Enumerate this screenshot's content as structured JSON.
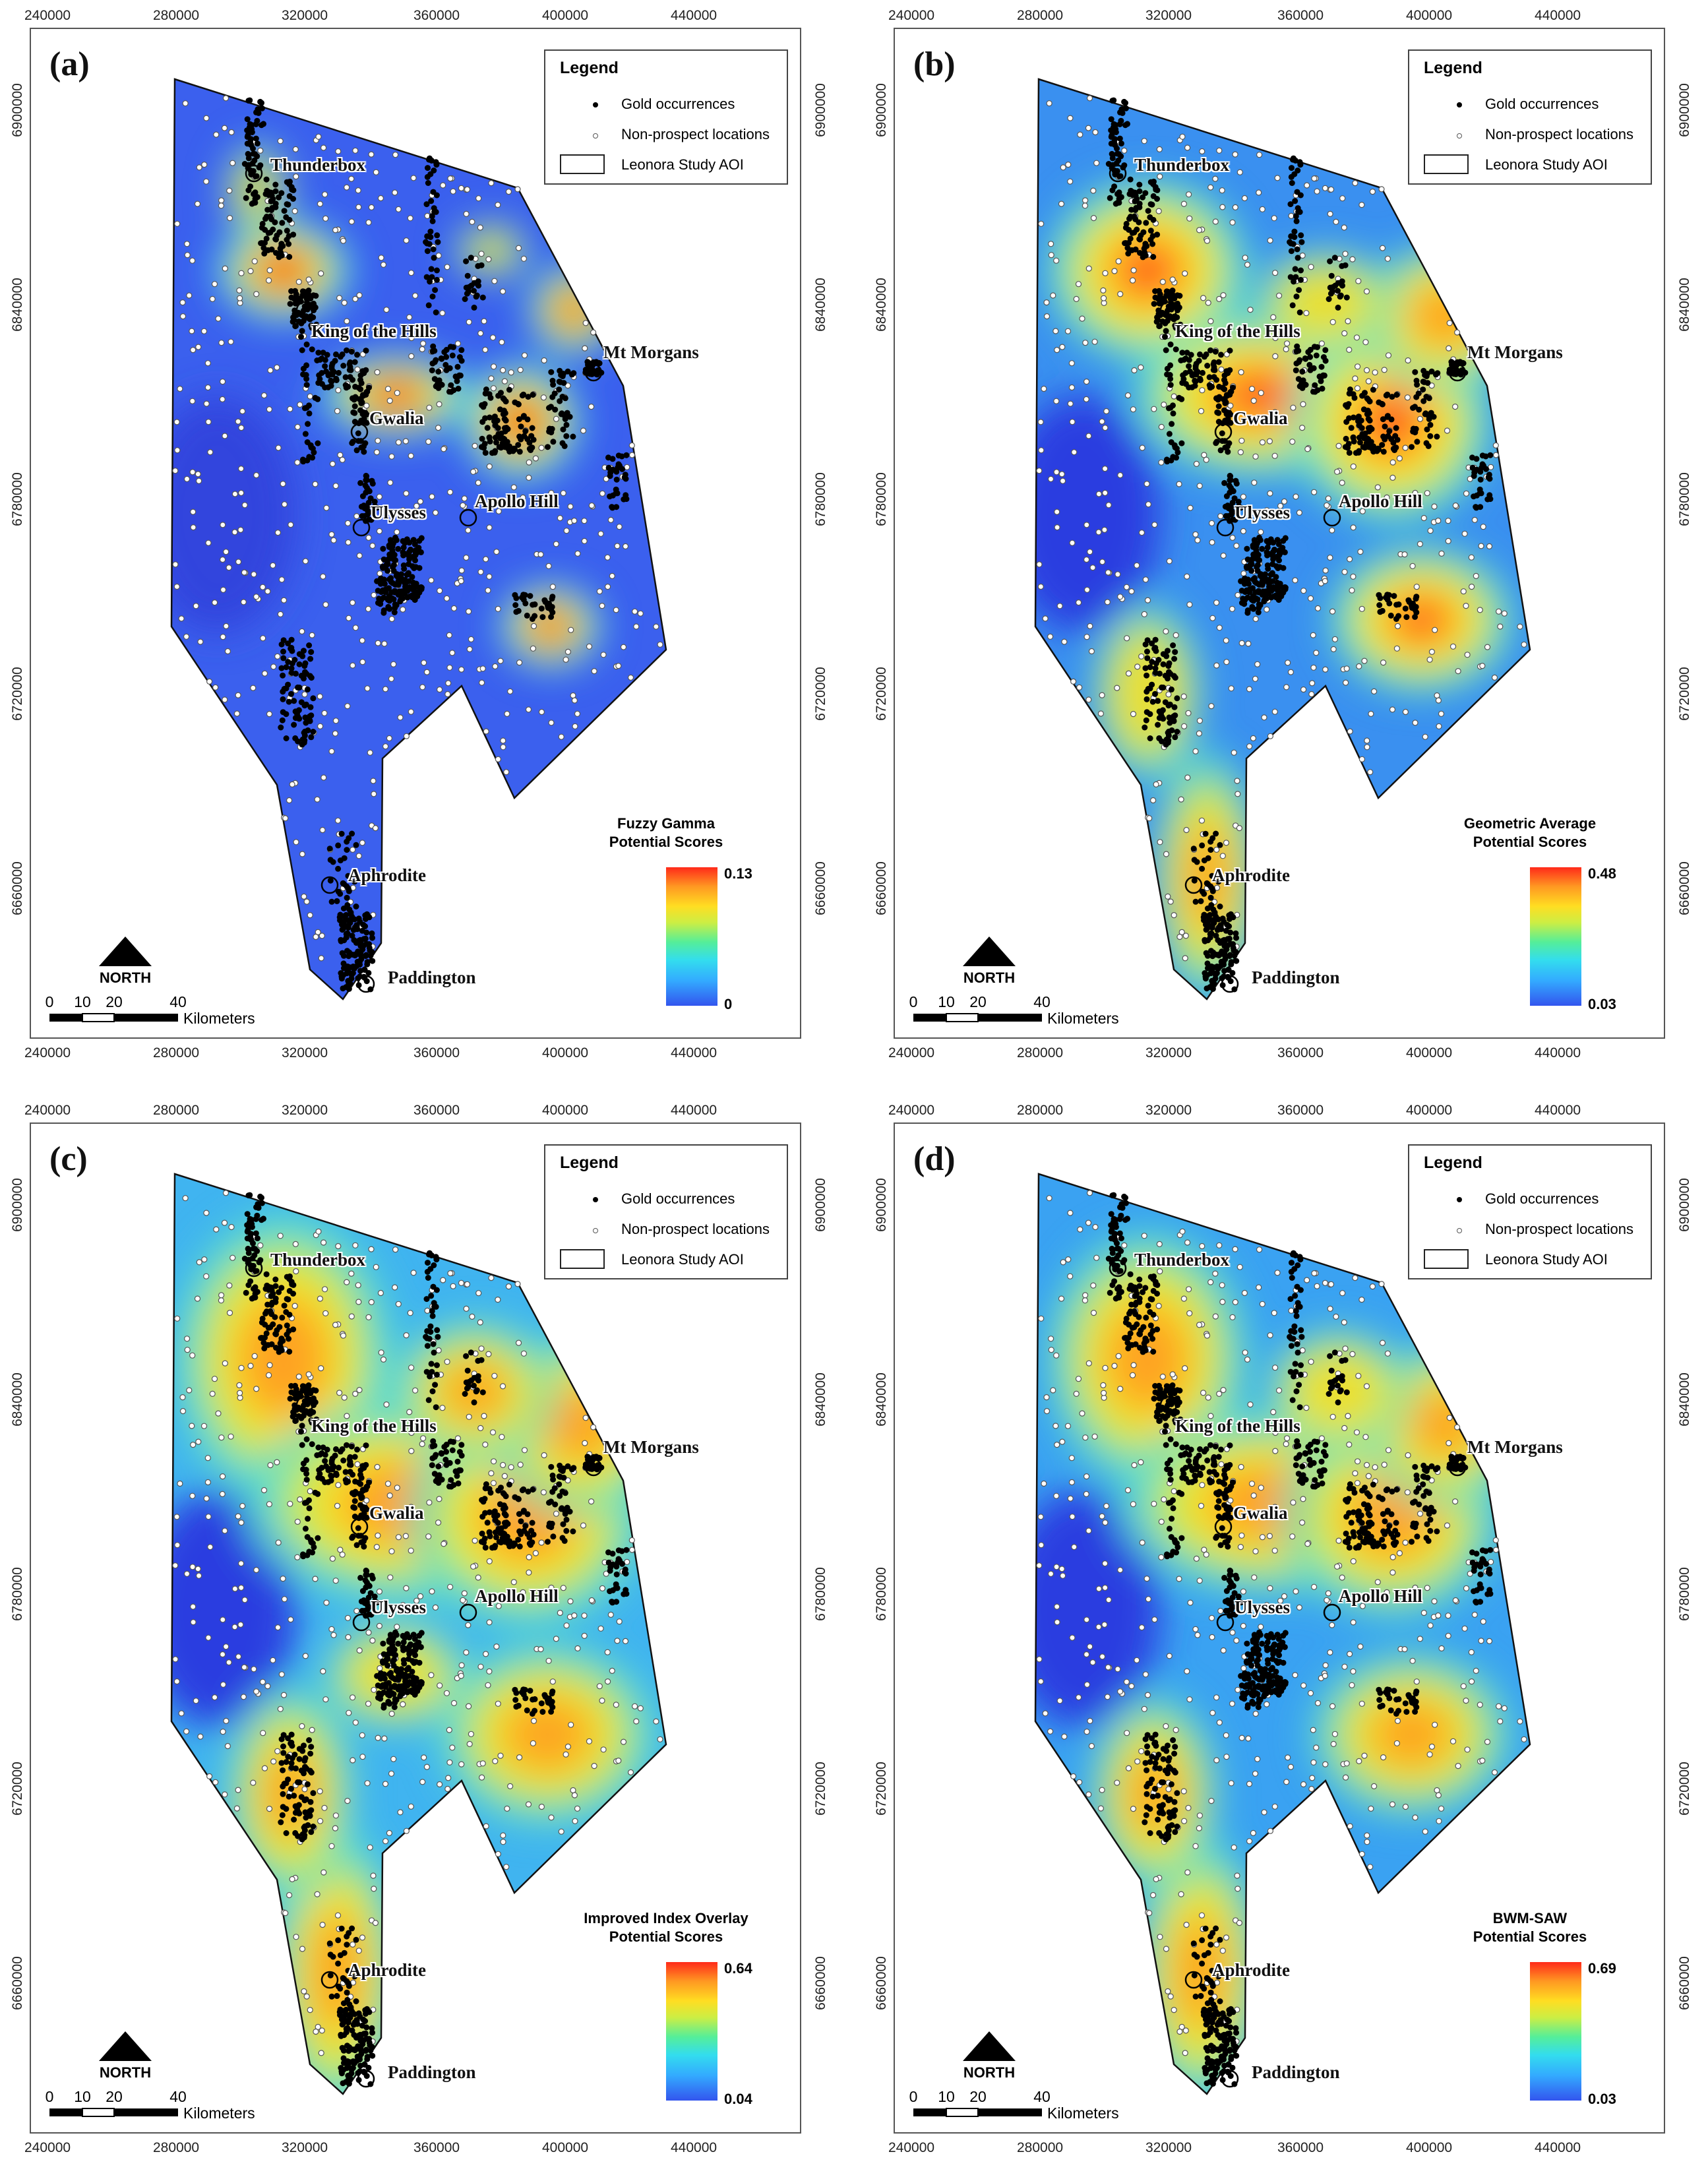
{
  "panels": [
    {
      "id": "a",
      "label": "(a)",
      "scale_title": "Fuzzy Gamma\nPotential Scores",
      "max": "0.13",
      "min": "0",
      "style": "gamma"
    },
    {
      "id": "b",
      "label": "(b)",
      "scale_title": "Geometric Average\nPotential Scores",
      "max": "0.48",
      "min": "0.03",
      "style": "geo"
    },
    {
      "id": "c",
      "label": "(c)",
      "scale_title": "Improved Index Overlay\nPotential Scores",
      "max": "0.64",
      "min": "0.04",
      "style": "idx"
    },
    {
      "id": "d",
      "label": "(d)",
      "scale_title": "BWM-SAW\nPotential Scores",
      "max": "0.69",
      "min": "0.03",
      "style": "bwm"
    }
  ],
  "legend": {
    "title": "Legend",
    "gold": "Gold occurrences",
    "nonprospect": "Non-prospect locations",
    "aoi": "Leonora Study AOI"
  },
  "easting_ticks": [
    "240000",
    "280000",
    "320000",
    "360000",
    "400000",
    "440000"
  ],
  "northing_ticks": [
    "6900000",
    "6840000",
    "6780000",
    "6720000",
    "6660000"
  ],
  "places": [
    "Thunderbox",
    "King of the Hills",
    "Mt Morgans",
    "Gwalia",
    "Apollo Hill",
    "Ulysses",
    "Aphrodite",
    "Paddington"
  ],
  "north_label": "NORTH",
  "scalebar": {
    "ticks": [
      "0",
      "10",
      "20",
      "40"
    ],
    "unit": "Kilometers"
  },
  "colors": {
    "low": "#3355ee",
    "mid": "#55ee99",
    "high": "#ff2a1a",
    "frame": "#555555"
  }
}
